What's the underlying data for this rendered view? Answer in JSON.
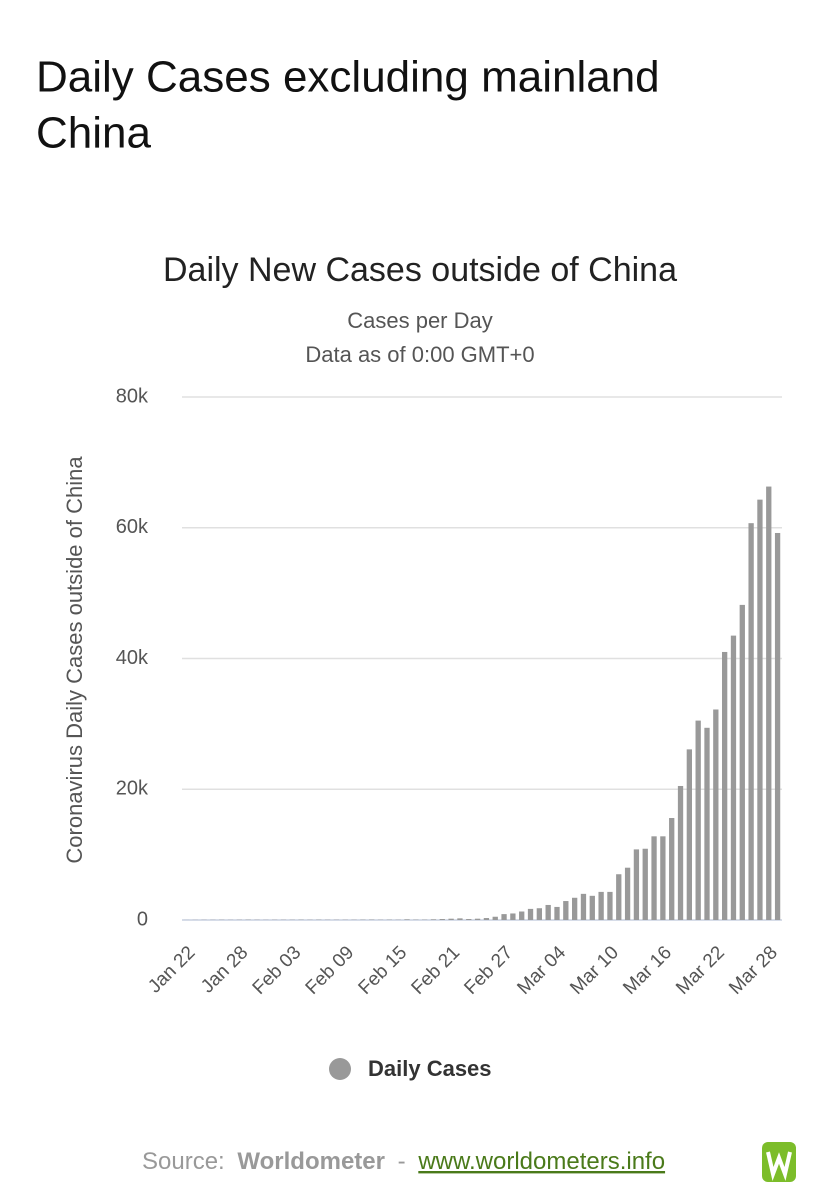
{
  "header": {
    "title_line1": "Daily Cases excluding mainland",
    "title_line2": "China"
  },
  "chart_data": {
    "type": "bar",
    "title": "Daily New Cases outside of China",
    "subtitle": [
      "Cases per Day",
      "Data as of 0:00 GMT+0"
    ],
    "y_label": "Coronavirus Daily Cases outside of China",
    "categories": [
      "Jan 22",
      null,
      null,
      null,
      null,
      null,
      "Jan 28",
      null,
      null,
      null,
      null,
      null,
      "Feb 03",
      null,
      null,
      null,
      null,
      null,
      "Feb 09",
      null,
      null,
      null,
      null,
      null,
      "Feb 15",
      null,
      null,
      null,
      null,
      null,
      "Feb 21",
      null,
      null,
      null,
      null,
      null,
      "Feb 27",
      null,
      null,
      null,
      null,
      null,
      "Mar 04",
      null,
      null,
      null,
      null,
      null,
      "Mar 10",
      null,
      null,
      null,
      null,
      null,
      "Mar 16",
      null,
      null,
      null,
      null,
      null,
      "Mar 22",
      null,
      null,
      null,
      null,
      null,
      "Mar 28",
      null
    ],
    "series": [
      {
        "name": "Daily Cases",
        "color": "#999999",
        "values": [
          10,
          20,
          30,
          30,
          40,
          30,
          40,
          50,
          40,
          30,
          40,
          40,
          40,
          50,
          40,
          50,
          40,
          40,
          40,
          40,
          50,
          60,
          40,
          50,
          40,
          100,
          50,
          50,
          100,
          150,
          200,
          250,
          150,
          200,
          300,
          500,
          900,
          1000,
          1300,
          1700,
          1800,
          2300,
          2000,
          2900,
          3400,
          4000,
          3700,
          4300,
          4300,
          7000,
          8000,
          10800,
          10900,
          12800,
          12800,
          15600,
          20500,
          26100,
          30500,
          29400,
          32200,
          41000,
          43500,
          48200,
          60700,
          64300,
          66300,
          59200
        ]
      }
    ],
    "ylim": [
      0,
      80000
    ],
    "yticks": [
      {
        "value": 0,
        "label": "0"
      },
      {
        "value": 20000,
        "label": "20k"
      },
      {
        "value": 40000,
        "label": "40k"
      },
      {
        "value": 60000,
        "label": "60k"
      },
      {
        "value": 80000,
        "label": "80k"
      }
    ],
    "grid": true
  },
  "footer": {
    "source_label": "Source:",
    "source_name": "Worldometer",
    "separator": "-",
    "url": "www.worldometers.info"
  }
}
